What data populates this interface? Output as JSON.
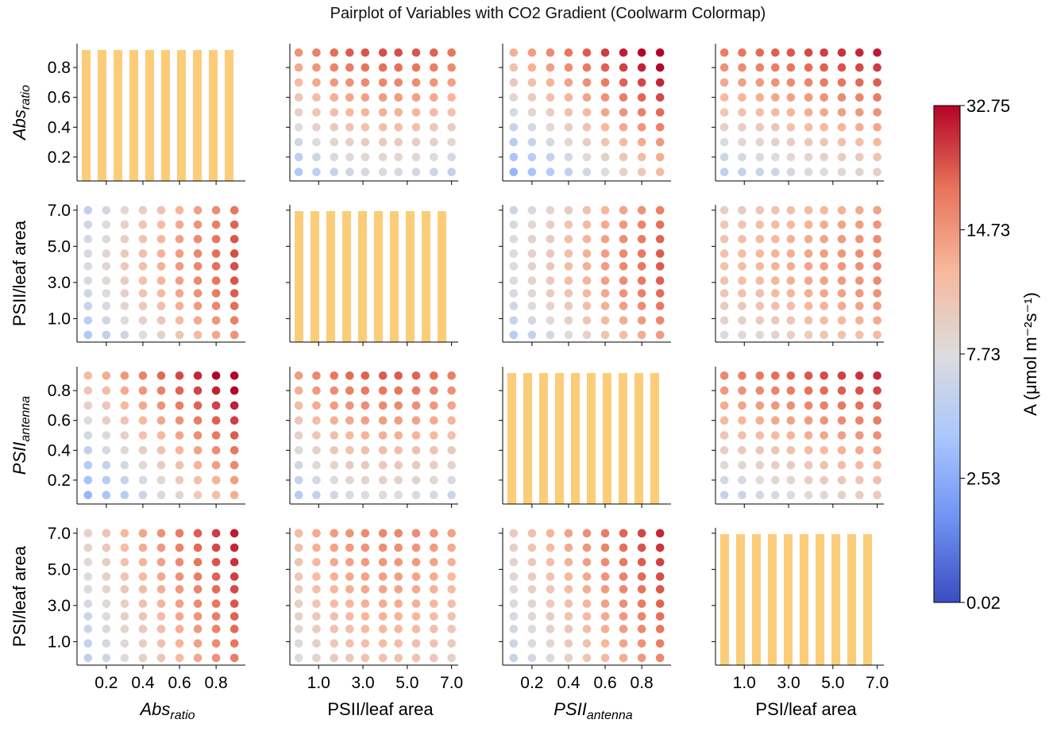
{
  "title": "Pairplot of Variables with CO2 Gradient (Coolwarm Colormap)",
  "chart_data": {
    "type": "scatter",
    "variables": [
      {
        "name": "Abs",
        "sub": "ratio",
        "italic": true,
        "ticks": [
          "0.2",
          "0.4",
          "0.6",
          "0.8"
        ],
        "tickvals": [
          0.2,
          0.4,
          0.6,
          0.8
        ],
        "range": [
          0.04,
          0.96
        ],
        "grid": [
          0.1,
          0.2,
          0.3,
          0.4,
          0.5,
          0.6,
          0.7,
          0.8,
          0.9
        ]
      },
      {
        "name": "PSII/leaf area",
        "sub": "",
        "italic": false,
        "ticks": [
          "1.0",
          "3.0",
          "5.0",
          "7.0"
        ],
        "tickvals": [
          1,
          3,
          5,
          7
        ],
        "range": [
          -0.3,
          7.3
        ],
        "grid": [
          0.1,
          0.9,
          1.7,
          2.4,
          3.1,
          3.9,
          4.6,
          5.4,
          6.2,
          7.0
        ]
      },
      {
        "name": "PSII",
        "sub": "antenna",
        "italic": true,
        "ticks": [
          "0.2",
          "0.4",
          "0.6",
          "0.8"
        ],
        "tickvals": [
          0.2,
          0.4,
          0.6,
          0.8
        ],
        "range": [
          0.04,
          0.96
        ],
        "grid": [
          0.1,
          0.2,
          0.3,
          0.4,
          0.5,
          0.6,
          0.7,
          0.8,
          0.9
        ]
      },
      {
        "name": "PSI/leaf area",
        "sub": "",
        "italic": false,
        "ticks": [
          "1.0",
          "3.0",
          "5.0",
          "7.0"
        ],
        "tickvals": [
          1,
          3,
          5,
          7
        ],
        "range": [
          -0.3,
          7.3
        ],
        "grid": [
          0.1,
          0.9,
          1.7,
          2.4,
          3.1,
          3.9,
          4.6,
          5.4,
          6.2,
          7.0
        ]
      }
    ],
    "histogram_bars": [
      [
        0.1,
        0.2,
        0.3,
        0.4,
        0.5,
        0.7,
        0.8,
        0.9,
        1.0,
        1.1
      ],
      [
        0.1,
        0.9,
        1.7,
        2.4,
        3.1,
        4.6,
        5.4,
        6.2,
        7.0,
        7.7
      ],
      [
        0.1,
        0.2,
        0.3,
        0.4,
        0.5,
        0.6,
        0.7,
        0.8,
        0.9,
        1.0
      ],
      [
        0.1,
        0.9,
        1.7,
        2.4,
        3.1,
        4.6,
        5.4,
        6.2,
        7.0,
        7.7
      ]
    ],
    "histogram_color": "#fbcd79",
    "colorbar": {
      "label": "A (μmol m⁻²s⁻¹)",
      "ticks": [
        "32.75",
        "14.73",
        "7.73",
        "2.53",
        "0.02"
      ],
      "colormap": "coolwarm",
      "colors": [
        "#3b4cc0",
        "#6f92f3",
        "#aac7fd",
        "#dddcdc",
        "#f7b89c",
        "#e7745b",
        "#b40426"
      ]
    }
  }
}
